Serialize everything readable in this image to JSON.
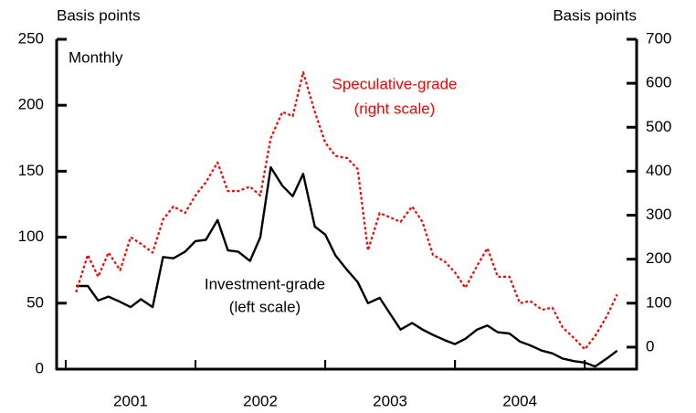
{
  "chart_data": {
    "type": "line",
    "y_axis_label": "Basis points",
    "y2_axis_label": "Basis points",
    "annotations": [
      "Monthly",
      "Speculative-grade",
      "(right scale)",
      "Investment-grade",
      "(left scale)"
    ],
    "x": [
      2001.08,
      2001.17,
      2001.25,
      2001.33,
      2001.42,
      2001.5,
      2001.58,
      2001.67,
      2001.75,
      2001.83,
      2001.92,
      2002,
      2002.08,
      2002.17,
      2002.25,
      2002.33,
      2002.42,
      2002.5,
      2002.58,
      2002.67,
      2002.75,
      2002.83,
      2002.92,
      2003,
      2003.08,
      2003.17,
      2003.25,
      2003.33,
      2003.42,
      2003.5,
      2003.58,
      2003.67,
      2003.75,
      2003.83,
      2003.92,
      2004,
      2004.08,
      2004.17,
      2004.25,
      2004.33,
      2004.42,
      2004.5,
      2004.58,
      2004.67,
      2004.75,
      2004.83,
      2004.92,
      2005,
      2005.08,
      2005.17,
      2005.25
    ],
    "xlim": [
      2000.93,
      2005.4
    ],
    "xticks": [
      {
        "value": 2001.5,
        "label": "2001"
      },
      {
        "value": 2002.5,
        "label": "2002"
      },
      {
        "value": 2003.5,
        "label": "2003"
      },
      {
        "value": 2004.5,
        "label": "2004"
      }
    ],
    "ylim": [
      0,
      250
    ],
    "yticks": [
      0,
      50,
      100,
      150,
      200,
      250
    ],
    "y2lim": [
      -50,
      700
    ],
    "y2ticks": [
      0,
      100,
      200,
      300,
      400,
      500,
      600,
      700
    ],
    "series": [
      {
        "name": "Investment-grade",
        "color": "#000000",
        "dash": "solid",
        "values": [
          63,
          63,
          52,
          55,
          51,
          47,
          53,
          47,
          85,
          84,
          89,
          97,
          98,
          113,
          90,
          89,
          82,
          100,
          153,
          139,
          131,
          148,
          108,
          102,
          86,
          75,
          66,
          50,
          54,
          42,
          30,
          35,
          30,
          26,
          22,
          19,
          23,
          30,
          33,
          28,
          27,
          21,
          18,
          14,
          12,
          8,
          6,
          5,
          2,
          8,
          14
        ]
      },
      {
        "name": "Speculative-grade",
        "color": "#ff0000",
        "dash": "dotted",
        "axis": "y2",
        "values": [
          125,
          210,
          160,
          215,
          175,
          250,
          235,
          215,
          290,
          320,
          305,
          345,
          375,
          420,
          355,
          355,
          365,
          345,
          475,
          535,
          525,
          625,
          535,
          465,
          435,
          430,
          405,
          220,
          305,
          295,
          285,
          320,
          285,
          210,
          195,
          170,
          135,
          185,
          225,
          160,
          160,
          100,
          105,
          85,
          90,
          45,
          20,
          -5,
          25,
          70,
          120
        ]
      }
    ]
  }
}
